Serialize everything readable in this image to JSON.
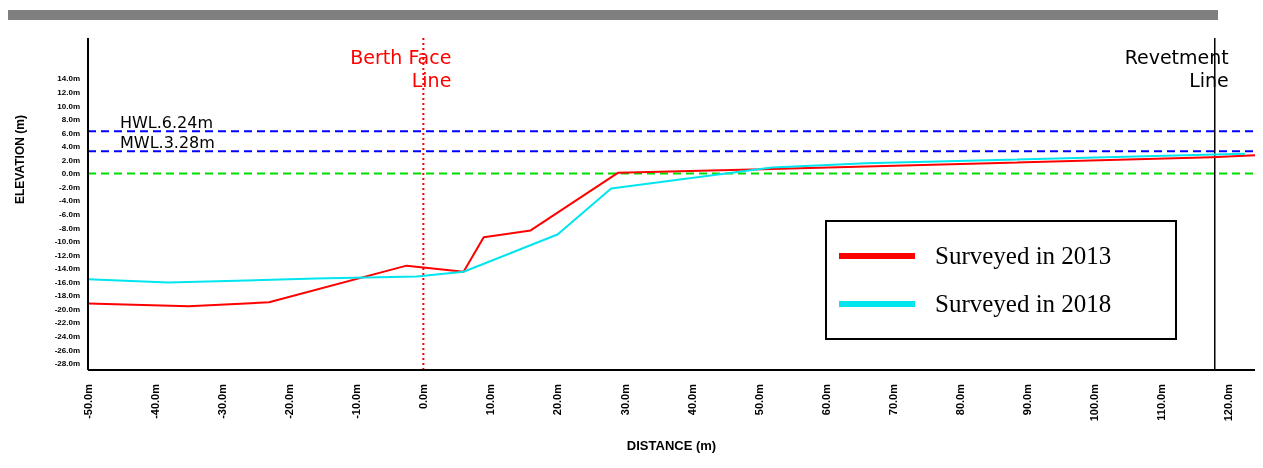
{
  "chart_data": {
    "type": "line",
    "xlabel": "DISTANCE (m)",
    "ylabel": "ELEVATION (m)",
    "series": [
      {
        "name": "Surveyed in 2013",
        "color": "#ff0000",
        "x": [
          -50,
          -35,
          -23,
          -2.5,
          6,
          9,
          16,
          29,
          49,
          117.5,
          124
        ],
        "values": [
          -19.2,
          -19.6,
          -19,
          -13.6,
          -14.5,
          -9.4,
          -8.4,
          0.1,
          0.6,
          2.4,
          2.7
        ]
      },
      {
        "name": "Surveyed in 2018",
        "color": "#00e5ee",
        "x": [
          -50,
          -38,
          -16,
          -1,
          6,
          20,
          28,
          52,
          66,
          122.5
        ],
        "values": [
          -15.6,
          -16.1,
          -15.5,
          -15.2,
          -14.5,
          -9,
          -2.2,
          0.9,
          1.5,
          2.9
        ]
      }
    ],
    "xlim": [
      -50,
      124
    ],
    "xticks": [
      {
        "value": -50,
        "label": "-50.0m"
      },
      {
        "value": -40,
        "label": "-40.0m"
      },
      {
        "value": -30,
        "label": "-30.0m"
      },
      {
        "value": -20,
        "label": "-20.0m"
      },
      {
        "value": -10,
        "label": "-10.0m"
      },
      {
        "value": 0,
        "label": "0.0m"
      },
      {
        "value": 10,
        "label": "10.0m"
      },
      {
        "value": 20,
        "label": "20.0m"
      },
      {
        "value": 30,
        "label": "30.0m"
      },
      {
        "value": 40,
        "label": "40.0m"
      },
      {
        "value": 50,
        "label": "50.0m"
      },
      {
        "value": 60,
        "label": "60.0m"
      },
      {
        "value": 70,
        "label": "70.0m"
      },
      {
        "value": 80,
        "label": "80.0m"
      },
      {
        "value": 90,
        "label": "90.0m"
      },
      {
        "value": 100,
        "label": "100.0m"
      },
      {
        "value": 110,
        "label": "110.0m"
      },
      {
        "value": 120,
        "label": "120.0m"
      }
    ],
    "ylim": [
      -29,
      20
    ],
    "yticks": [
      {
        "value": -28,
        "label": "-28.0m"
      },
      {
        "value": -26,
        "label": "-26.0m"
      },
      {
        "value": -24,
        "label": "-24.0m"
      },
      {
        "value": -22,
        "label": "-22.0m"
      },
      {
        "value": -20,
        "label": "-20.0m"
      },
      {
        "value": -18,
        "label": "-18.0m"
      },
      {
        "value": -16,
        "label": "-16.0m"
      },
      {
        "value": -14,
        "label": "-14.0m"
      },
      {
        "value": -12,
        "label": "-12.0m"
      },
      {
        "value": -10,
        "label": "-10.0m"
      },
      {
        "value": -8,
        "label": "-8.0m"
      },
      {
        "value": -6,
        "label": "-6.0m"
      },
      {
        "value": -4,
        "label": "-4.0m"
      },
      {
        "value": -2,
        "label": "-2.0m"
      },
      {
        "value": 0,
        "label": "0.0m"
      },
      {
        "value": 2,
        "label": "2.0m"
      },
      {
        "value": 4,
        "label": "4.0m"
      },
      {
        "value": 6,
        "label": "6.0m"
      },
      {
        "value": 8,
        "label": "8.0m"
      },
      {
        "value": 10,
        "label": "10.0m"
      },
      {
        "value": 12,
        "label": "12.0m"
      },
      {
        "value": 14,
        "label": "14.0m"
      }
    ],
    "ref_lines": [
      {
        "axis": "y",
        "value": 6.24,
        "label": "HWL.6.24m",
        "color": "#0000ff",
        "line_style": "dashed"
      },
      {
        "axis": "y",
        "value": 3.28,
        "label": "MWL.3.28m",
        "color": "#0000ff",
        "line_style": "dashed"
      },
      {
        "axis": "y",
        "value": 0,
        "color": "#00dd00",
        "line_style": "dashed"
      },
      {
        "axis": "x",
        "value": 0,
        "label": "Berth Face Line",
        "color": "#ff0000",
        "line_style": "dotted"
      },
      {
        "axis": "x",
        "value": 118,
        "label": "Revetment Line",
        "color": "#000000",
        "line_style": "solid"
      }
    ],
    "legend": "bottom right",
    "grid": false,
    "marker": "none",
    "line_style": "solid"
  }
}
